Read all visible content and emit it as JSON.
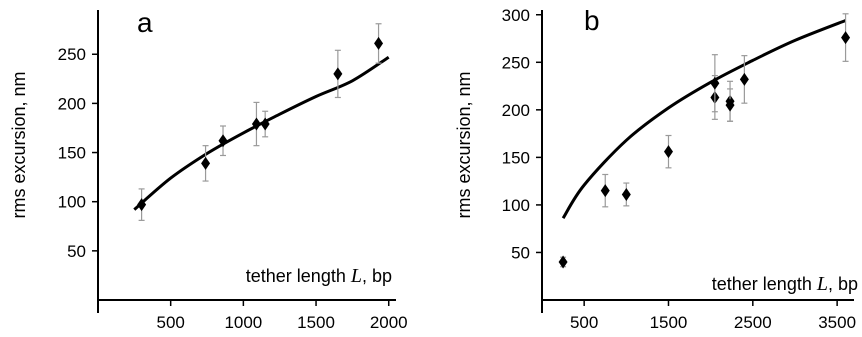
{
  "chart_data": [
    {
      "type": "scatter",
      "panel_label": "a",
      "xlabel_prefix": "tether length ",
      "xlabel_var": "L",
      "xlabel_suffix": ", bp",
      "ylabel": "rms excursion, nm",
      "xlim": [
        0,
        2050
      ],
      "ylim": [
        0,
        295
      ],
      "xticks": [
        500,
        1000,
        1500,
        2000
      ],
      "yticks": [
        50,
        100,
        150,
        200,
        250
      ],
      "points": [
        {
          "x": 300,
          "y": 97,
          "err": 16
        },
        {
          "x": 740,
          "y": 139,
          "err": 18
        },
        {
          "x": 860,
          "y": 162,
          "err": 15
        },
        {
          "x": 1090,
          "y": 179,
          "err": 22
        },
        {
          "x": 1150,
          "y": 179,
          "err": 13
        },
        {
          "x": 1650,
          "y": 230,
          "err": 24
        },
        {
          "x": 1930,
          "y": 261,
          "err": 20
        }
      ],
      "curve": [
        {
          "x": 250,
          "y": 92
        },
        {
          "x": 500,
          "y": 124
        },
        {
          "x": 750,
          "y": 149
        },
        {
          "x": 1000,
          "y": 170
        },
        {
          "x": 1250,
          "y": 189
        },
        {
          "x": 1500,
          "y": 207
        },
        {
          "x": 1750,
          "y": 223
        },
        {
          "x": 2000,
          "y": 247
        }
      ]
    },
    {
      "type": "scatter",
      "panel_label": "b",
      "xlabel_prefix": "tether length ",
      "xlabel_var": "L",
      "xlabel_suffix": ", bp",
      "ylabel": "rms excursion, nm",
      "xlim": [
        0,
        3700
      ],
      "ylim": [
        0,
        305
      ],
      "xticks": [
        500,
        1500,
        2500,
        3500
      ],
      "xtick_labels": [
        "500",
        "1500",
        "2500",
        "3500"
      ],
      "yticks": [
        50,
        100,
        150,
        200,
        250,
        300
      ],
      "points": [
        {
          "x": 250,
          "y": 40,
          "err": 5
        },
        {
          "x": 750,
          "y": 115,
          "err": 17
        },
        {
          "x": 1000,
          "y": 111,
          "err": 12
        },
        {
          "x": 1500,
          "y": 156,
          "err": 17
        },
        {
          "x": 2050,
          "y": 213,
          "err": 23
        },
        {
          "x": 2050,
          "y": 228,
          "err": 30
        },
        {
          "x": 2230,
          "y": 209,
          "err": 21
        },
        {
          "x": 2230,
          "y": 205,
          "err": 17
        },
        {
          "x": 2400,
          "y": 232,
          "err": 25
        },
        {
          "x": 3600,
          "y": 276,
          "err": 25
        }
      ],
      "curve": [
        {
          "x": 250,
          "y": 86
        },
        {
          "x": 500,
          "y": 121
        },
        {
          "x": 1000,
          "y": 168
        },
        {
          "x": 1500,
          "y": 202
        },
        {
          "x": 2000,
          "y": 229
        },
        {
          "x": 2500,
          "y": 252
        },
        {
          "x": 3000,
          "y": 273
        },
        {
          "x": 3600,
          "y": 294
        }
      ]
    }
  ]
}
